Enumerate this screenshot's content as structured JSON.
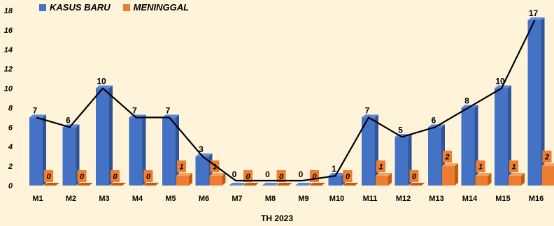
{
  "legend": {
    "series1": "KASUS BARU",
    "series2": "MENINGGAL"
  },
  "colors": {
    "blue": "#4472c4",
    "blue_side": "#2f5597",
    "blue_top": "#5b8bd8",
    "orange": "#ed7d31",
    "orange_side": "#c55a11",
    "orange_top": "#f4a261",
    "background": "#fff4d9"
  },
  "chart_data": {
    "type": "bar",
    "categories": [
      "M1",
      "M2",
      "M3",
      "M4",
      "M5",
      "M6",
      "M7",
      "M8",
      "M9",
      "M10",
      "M11",
      "M12",
      "M13",
      "M14",
      "M15",
      "M16"
    ],
    "series": [
      {
        "name": "KASUS BARU",
        "values": [
          7,
          6,
          10,
          7,
          7,
          3,
          0,
          0,
          0,
          1,
          7,
          5,
          6,
          8,
          10,
          17
        ]
      },
      {
        "name": "MENINGGAL",
        "values": [
          0,
          0,
          0,
          0,
          1,
          1,
          0,
          0,
          0,
          0,
          1,
          0,
          2,
          1,
          1,
          2
        ]
      }
    ],
    "line_series": "KASUS BARU",
    "xlabel": "TH 2023",
    "ylabel": "",
    "ylim": [
      0,
      18
    ],
    "yticks": [
      0,
      2,
      4,
      6,
      8,
      10,
      12,
      14,
      16,
      18
    ],
    "grid": false,
    "legend_position": "top-left"
  }
}
